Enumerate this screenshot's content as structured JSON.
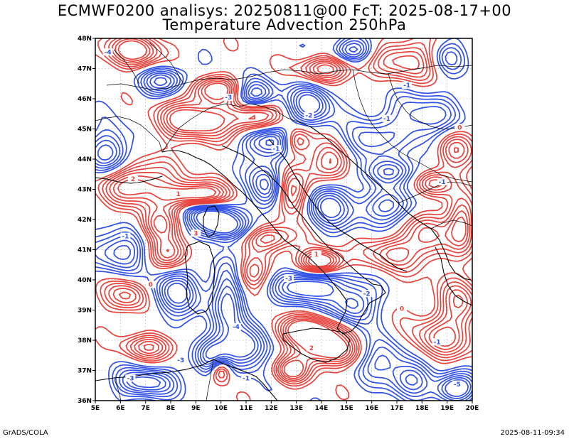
{
  "header": {
    "title_line1": "ECMWF0200 analisys: 20250811@00 FcT: 2025-08-17+00",
    "title_line2": "Temperature Advection 250hPa"
  },
  "footer": {
    "left": "GrADS/COLA",
    "right": "2025-08-11-09:34"
  },
  "map": {
    "lon_range": [
      5,
      20
    ],
    "lat_range": [
      36,
      48
    ],
    "lon_labels": [
      "5E",
      "6E",
      "7E",
      "8E",
      "9E",
      "10E",
      "11E",
      "12E",
      "13E",
      "14E",
      "15E",
      "16E",
      "17E",
      "18E",
      "19E",
      "20E"
    ],
    "lat_labels": [
      "36N",
      "37N",
      "38N",
      "39N",
      "40N",
      "41N",
      "42N",
      "43N",
      "44N",
      "45N",
      "46N",
      "47N",
      "48N"
    ],
    "grid": "dotted",
    "colors": {
      "positive": "#e8423c",
      "negative": "#3050e6",
      "coast": "#000000"
    },
    "contour_labels": [
      {
        "lon": 5.5,
        "lat": 47.5,
        "text": "-4",
        "sign": "neg"
      },
      {
        "lon": 10.3,
        "lat": 46.0,
        "text": "-3",
        "sign": "neg"
      },
      {
        "lon": 13.5,
        "lat": 45.4,
        "text": "-2",
        "sign": "neg"
      },
      {
        "lon": 12.2,
        "lat": 44.3,
        "text": "-1",
        "sign": "neg"
      },
      {
        "lon": 6.5,
        "lat": 43.3,
        "text": "2",
        "sign": "pos"
      },
      {
        "lon": 8.3,
        "lat": 42.8,
        "text": "1",
        "sign": "pos"
      },
      {
        "lon": 6.2,
        "lat": 41.4,
        "text": "-1",
        "sign": "neg"
      },
      {
        "lon": 9.0,
        "lat": 41.5,
        "text": "3",
        "sign": "pos"
      },
      {
        "lon": 13.8,
        "lat": 40.8,
        "text": "1",
        "sign": "pos"
      },
      {
        "lon": 12.7,
        "lat": 40.0,
        "text": "-3",
        "sign": "neg"
      },
      {
        "lon": 7.2,
        "lat": 39.8,
        "text": "0",
        "sign": "pos"
      },
      {
        "lon": 15.8,
        "lat": 39.5,
        "text": "-2",
        "sign": "neg"
      },
      {
        "lon": 17.2,
        "lat": 39.0,
        "text": "0",
        "sign": "pos"
      },
      {
        "lon": 10.6,
        "lat": 38.4,
        "text": "-4",
        "sign": "neg"
      },
      {
        "lon": 13.6,
        "lat": 37.7,
        "text": "2",
        "sign": "pos"
      },
      {
        "lon": 8.4,
        "lat": 37.3,
        "text": "-3",
        "sign": "neg"
      },
      {
        "lon": 18.6,
        "lat": 37.9,
        "text": "-1",
        "sign": "neg"
      },
      {
        "lon": 19.4,
        "lat": 36.5,
        "text": "-5",
        "sign": "neg"
      },
      {
        "lon": 6.4,
        "lat": 36.7,
        "text": "-3",
        "sign": "neg"
      },
      {
        "lon": 16.6,
        "lat": 45.3,
        "text": "-1",
        "sign": "neg"
      },
      {
        "lon": 19.5,
        "lat": 45.0,
        "text": "0",
        "sign": "pos"
      },
      {
        "lon": 17.4,
        "lat": 46.4,
        "text": "-1",
        "sign": "neg"
      },
      {
        "lon": 18.8,
        "lat": 43.2,
        "text": "-1",
        "sign": "neg"
      },
      {
        "lon": 11.0,
        "lat": 36.7,
        "text": "-1",
        "sign": "neg"
      }
    ],
    "fields": [
      {
        "lon": 6.5,
        "lat": 47.6,
        "amp": 1.0,
        "sx": 0.9,
        "sy": 0.4
      },
      {
        "lon": 7.8,
        "lat": 46.6,
        "amp": -0.9,
        "sx": 0.7,
        "sy": 0.35
      },
      {
        "lon": 9.8,
        "lat": 46.3,
        "amp": 1.0,
        "sx": 0.8,
        "sy": 0.3
      },
      {
        "lon": 11.3,
        "lat": 46.1,
        "amp": -1.1,
        "sx": 0.6,
        "sy": 0.35
      },
      {
        "lon": 9.0,
        "lat": 45.3,
        "amp": 1.2,
        "sx": 1.0,
        "sy": 0.45
      },
      {
        "lon": 11.3,
        "lat": 45.4,
        "amp": 1.0,
        "sx": 0.7,
        "sy": 0.4
      },
      {
        "lon": 13.6,
        "lat": 45.8,
        "amp": -1.0,
        "sx": 0.6,
        "sy": 0.5
      },
      {
        "lon": 14.2,
        "lat": 47.0,
        "amp": 1.0,
        "sx": 0.8,
        "sy": 0.3
      },
      {
        "lon": 15.3,
        "lat": 47.6,
        "amp": -0.9,
        "sx": 0.6,
        "sy": 0.3
      },
      {
        "lon": 17.5,
        "lat": 47.3,
        "amp": 0.9,
        "sx": 1.0,
        "sy": 0.5
      },
      {
        "lon": 19.0,
        "lat": 47.4,
        "amp": -0.7,
        "sx": 0.6,
        "sy": 0.4
      },
      {
        "lon": 12.0,
        "lat": 44.6,
        "amp": -1.0,
        "sx": 0.8,
        "sy": 0.4
      },
      {
        "lon": 13.0,
        "lat": 44.6,
        "amp": 1.1,
        "sx": 0.4,
        "sy": 0.35
      },
      {
        "lon": 14.5,
        "lat": 43.9,
        "amp": 1.0,
        "sx": 0.6,
        "sy": 0.5
      },
      {
        "lon": 15.7,
        "lat": 44.5,
        "amp": -0.8,
        "sx": 0.7,
        "sy": 0.5
      },
      {
        "lon": 6.6,
        "lat": 43.2,
        "amp": 1.1,
        "sx": 1.0,
        "sy": 0.5
      },
      {
        "lon": 5.6,
        "lat": 44.2,
        "amp": -0.9,
        "sx": 0.6,
        "sy": 0.6
      },
      {
        "lon": 9.0,
        "lat": 42.8,
        "amp": 1.2,
        "sx": 0.9,
        "sy": 0.3
      },
      {
        "lon": 9.5,
        "lat": 42.2,
        "amp": -1.0,
        "sx": 0.7,
        "sy": 0.3
      },
      {
        "lon": 11.8,
        "lat": 43.1,
        "amp": -1.0,
        "sx": 0.5,
        "sy": 0.6
      },
      {
        "lon": 12.8,
        "lat": 42.9,
        "amp": 1.1,
        "sx": 0.45,
        "sy": 0.55
      },
      {
        "lon": 14.2,
        "lat": 42.5,
        "amp": -0.9,
        "sx": 0.6,
        "sy": 0.6
      },
      {
        "lon": 7.5,
        "lat": 41.8,
        "amp": 0.9,
        "sx": 0.6,
        "sy": 0.4
      },
      {
        "lon": 6.0,
        "lat": 41.0,
        "amp": -0.9,
        "sx": 0.8,
        "sy": 0.5
      },
      {
        "lon": 8.0,
        "lat": 40.9,
        "amp": 0.9,
        "sx": 0.6,
        "sy": 0.4
      },
      {
        "lon": 10.0,
        "lat": 41.7,
        "amp": -1.0,
        "sx": 0.8,
        "sy": 0.3
      },
      {
        "lon": 12.0,
        "lat": 41.4,
        "amp": 0.9,
        "sx": 0.8,
        "sy": 0.3
      },
      {
        "lon": 14.0,
        "lat": 40.6,
        "amp": 1.4,
        "sx": 0.6,
        "sy": 0.3
      },
      {
        "lon": 13.5,
        "lat": 39.8,
        "amp": -1.2,
        "sx": 0.9,
        "sy": 0.4
      },
      {
        "lon": 15.3,
        "lat": 39.2,
        "amp": -1.0,
        "sx": 0.6,
        "sy": 0.5
      },
      {
        "lon": 16.8,
        "lat": 40.9,
        "amp": 0.8,
        "sx": 0.7,
        "sy": 0.4
      },
      {
        "lon": 18.3,
        "lat": 41.5,
        "amp": 0.8,
        "sx": 0.6,
        "sy": 0.7
      },
      {
        "lon": 19.6,
        "lat": 41.8,
        "amp": 0.9,
        "sx": 0.4,
        "sy": 0.6
      },
      {
        "lon": 16.5,
        "lat": 42.4,
        "amp": -0.8,
        "sx": 1.0,
        "sy": 0.4
      },
      {
        "lon": 8.2,
        "lat": 39.6,
        "amp": -0.9,
        "sx": 0.7,
        "sy": 0.6
      },
      {
        "lon": 6.3,
        "lat": 39.5,
        "amp": 0.8,
        "sx": 0.6,
        "sy": 0.4
      },
      {
        "lon": 10.3,
        "lat": 39.4,
        "amp": -0.9,
        "sx": 0.5,
        "sy": 0.8
      },
      {
        "lon": 11.2,
        "lat": 40.2,
        "amp": 0.8,
        "sx": 0.5,
        "sy": 0.4
      },
      {
        "lon": 13.5,
        "lat": 38.3,
        "amp": 1.2,
        "sx": 1.0,
        "sy": 0.35
      },
      {
        "lon": 14.3,
        "lat": 37.6,
        "amp": 1.1,
        "sx": 0.9,
        "sy": 0.35
      },
      {
        "lon": 11.0,
        "lat": 37.8,
        "amp": -1.2,
        "sx": 0.6,
        "sy": 0.5
      },
      {
        "lon": 9.6,
        "lat": 37.5,
        "amp": -0.9,
        "sx": 0.5,
        "sy": 0.5
      },
      {
        "lon": 7.2,
        "lat": 37.8,
        "amp": 0.8,
        "sx": 0.8,
        "sy": 0.3
      },
      {
        "lon": 7.0,
        "lat": 36.6,
        "amp": -1.0,
        "sx": 0.8,
        "sy": 0.35
      },
      {
        "lon": 10.0,
        "lat": 37.0,
        "amp": 1.0,
        "sx": 0.3,
        "sy": 0.3
      },
      {
        "lon": 12.8,
        "lat": 37.0,
        "amp": 0.9,
        "sx": 0.5,
        "sy": 0.3
      },
      {
        "lon": 16.5,
        "lat": 37.4,
        "amp": -0.8,
        "sx": 0.8,
        "sy": 0.5
      },
      {
        "lon": 18.6,
        "lat": 38.0,
        "amp": 0.8,
        "sx": 1.0,
        "sy": 0.5
      },
      {
        "lon": 19.3,
        "lat": 36.4,
        "amp": -1.2,
        "sx": 0.6,
        "sy": 0.35
      },
      {
        "lon": 17.6,
        "lat": 36.7,
        "amp": -0.8,
        "sx": 0.6,
        "sy": 0.4
      },
      {
        "lon": 19.5,
        "lat": 39.2,
        "amp": 0.8,
        "sx": 0.6,
        "sy": 0.6
      },
      {
        "lon": 18.0,
        "lat": 45.3,
        "amp": -0.8,
        "sx": 1.0,
        "sy": 0.6
      },
      {
        "lon": 19.2,
        "lat": 44.3,
        "amp": 0.8,
        "sx": 0.5,
        "sy": 0.5
      },
      {
        "lon": 16.8,
        "lat": 43.6,
        "amp": -0.8,
        "sx": 0.8,
        "sy": 0.3
      },
      {
        "lon": 18.5,
        "lat": 43.2,
        "amp": 0.8,
        "sx": 0.5,
        "sy": 0.3
      }
    ]
  }
}
